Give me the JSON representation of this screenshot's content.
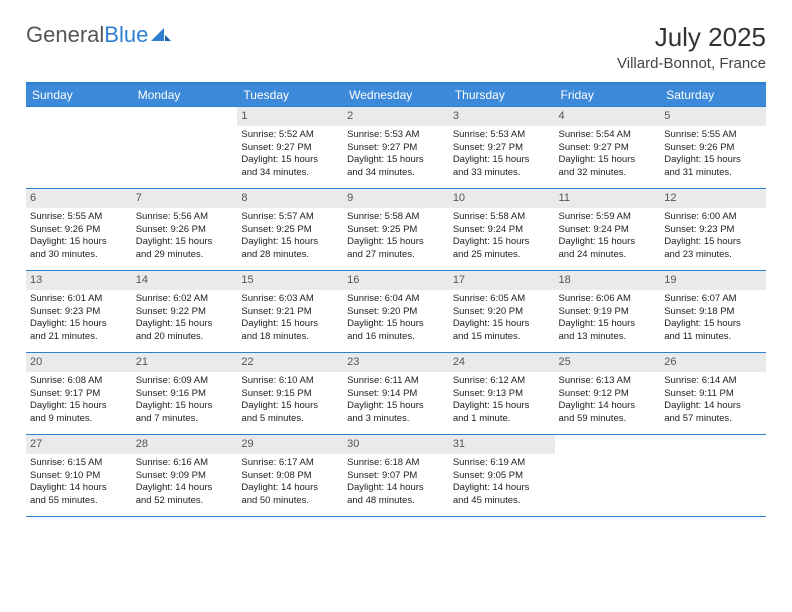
{
  "brand": {
    "part1": "General",
    "part2": "Blue"
  },
  "title": {
    "month": "July 2025",
    "location": "Villard-Bonnot, France"
  },
  "colors": {
    "header_bg": "#3b89d8",
    "rule": "#2f7fd1",
    "daynum_bg": "#e9eaec",
    "text": "#222222",
    "logo_gray": "#555555",
    "logo_blue": "#2f7fd1"
  },
  "dow": [
    "Sunday",
    "Monday",
    "Tuesday",
    "Wednesday",
    "Thursday",
    "Friday",
    "Saturday"
  ],
  "weeks": [
    [
      {
        "n": "",
        "lines": []
      },
      {
        "n": "",
        "lines": []
      },
      {
        "n": "1",
        "lines": [
          "Sunrise: 5:52 AM",
          "Sunset: 9:27 PM",
          "Daylight: 15 hours",
          "and 34 minutes."
        ]
      },
      {
        "n": "2",
        "lines": [
          "Sunrise: 5:53 AM",
          "Sunset: 9:27 PM",
          "Daylight: 15 hours",
          "and 34 minutes."
        ]
      },
      {
        "n": "3",
        "lines": [
          "Sunrise: 5:53 AM",
          "Sunset: 9:27 PM",
          "Daylight: 15 hours",
          "and 33 minutes."
        ]
      },
      {
        "n": "4",
        "lines": [
          "Sunrise: 5:54 AM",
          "Sunset: 9:27 PM",
          "Daylight: 15 hours",
          "and 32 minutes."
        ]
      },
      {
        "n": "5",
        "lines": [
          "Sunrise: 5:55 AM",
          "Sunset: 9:26 PM",
          "Daylight: 15 hours",
          "and 31 minutes."
        ]
      }
    ],
    [
      {
        "n": "6",
        "lines": [
          "Sunrise: 5:55 AM",
          "Sunset: 9:26 PM",
          "Daylight: 15 hours",
          "and 30 minutes."
        ]
      },
      {
        "n": "7",
        "lines": [
          "Sunrise: 5:56 AM",
          "Sunset: 9:26 PM",
          "Daylight: 15 hours",
          "and 29 minutes."
        ]
      },
      {
        "n": "8",
        "lines": [
          "Sunrise: 5:57 AM",
          "Sunset: 9:25 PM",
          "Daylight: 15 hours",
          "and 28 minutes."
        ]
      },
      {
        "n": "9",
        "lines": [
          "Sunrise: 5:58 AM",
          "Sunset: 9:25 PM",
          "Daylight: 15 hours",
          "and 27 minutes."
        ]
      },
      {
        "n": "10",
        "lines": [
          "Sunrise: 5:58 AM",
          "Sunset: 9:24 PM",
          "Daylight: 15 hours",
          "and 25 minutes."
        ]
      },
      {
        "n": "11",
        "lines": [
          "Sunrise: 5:59 AM",
          "Sunset: 9:24 PM",
          "Daylight: 15 hours",
          "and 24 minutes."
        ]
      },
      {
        "n": "12",
        "lines": [
          "Sunrise: 6:00 AM",
          "Sunset: 9:23 PM",
          "Daylight: 15 hours",
          "and 23 minutes."
        ]
      }
    ],
    [
      {
        "n": "13",
        "lines": [
          "Sunrise: 6:01 AM",
          "Sunset: 9:23 PM",
          "Daylight: 15 hours",
          "and 21 minutes."
        ]
      },
      {
        "n": "14",
        "lines": [
          "Sunrise: 6:02 AM",
          "Sunset: 9:22 PM",
          "Daylight: 15 hours",
          "and 20 minutes."
        ]
      },
      {
        "n": "15",
        "lines": [
          "Sunrise: 6:03 AM",
          "Sunset: 9:21 PM",
          "Daylight: 15 hours",
          "and 18 minutes."
        ]
      },
      {
        "n": "16",
        "lines": [
          "Sunrise: 6:04 AM",
          "Sunset: 9:20 PM",
          "Daylight: 15 hours",
          "and 16 minutes."
        ]
      },
      {
        "n": "17",
        "lines": [
          "Sunrise: 6:05 AM",
          "Sunset: 9:20 PM",
          "Daylight: 15 hours",
          "and 15 minutes."
        ]
      },
      {
        "n": "18",
        "lines": [
          "Sunrise: 6:06 AM",
          "Sunset: 9:19 PM",
          "Daylight: 15 hours",
          "and 13 minutes."
        ]
      },
      {
        "n": "19",
        "lines": [
          "Sunrise: 6:07 AM",
          "Sunset: 9:18 PM",
          "Daylight: 15 hours",
          "and 11 minutes."
        ]
      }
    ],
    [
      {
        "n": "20",
        "lines": [
          "Sunrise: 6:08 AM",
          "Sunset: 9:17 PM",
          "Daylight: 15 hours",
          "and 9 minutes."
        ]
      },
      {
        "n": "21",
        "lines": [
          "Sunrise: 6:09 AM",
          "Sunset: 9:16 PM",
          "Daylight: 15 hours",
          "and 7 minutes."
        ]
      },
      {
        "n": "22",
        "lines": [
          "Sunrise: 6:10 AM",
          "Sunset: 9:15 PM",
          "Daylight: 15 hours",
          "and 5 minutes."
        ]
      },
      {
        "n": "23",
        "lines": [
          "Sunrise: 6:11 AM",
          "Sunset: 9:14 PM",
          "Daylight: 15 hours",
          "and 3 minutes."
        ]
      },
      {
        "n": "24",
        "lines": [
          "Sunrise: 6:12 AM",
          "Sunset: 9:13 PM",
          "Daylight: 15 hours",
          "and 1 minute."
        ]
      },
      {
        "n": "25",
        "lines": [
          "Sunrise: 6:13 AM",
          "Sunset: 9:12 PM",
          "Daylight: 14 hours",
          "and 59 minutes."
        ]
      },
      {
        "n": "26",
        "lines": [
          "Sunrise: 6:14 AM",
          "Sunset: 9:11 PM",
          "Daylight: 14 hours",
          "and 57 minutes."
        ]
      }
    ],
    [
      {
        "n": "27",
        "lines": [
          "Sunrise: 6:15 AM",
          "Sunset: 9:10 PM",
          "Daylight: 14 hours",
          "and 55 minutes."
        ]
      },
      {
        "n": "28",
        "lines": [
          "Sunrise: 6:16 AM",
          "Sunset: 9:09 PM",
          "Daylight: 14 hours",
          "and 52 minutes."
        ]
      },
      {
        "n": "29",
        "lines": [
          "Sunrise: 6:17 AM",
          "Sunset: 9:08 PM",
          "Daylight: 14 hours",
          "and 50 minutes."
        ]
      },
      {
        "n": "30",
        "lines": [
          "Sunrise: 6:18 AM",
          "Sunset: 9:07 PM",
          "Daylight: 14 hours",
          "and 48 minutes."
        ]
      },
      {
        "n": "31",
        "lines": [
          "Sunrise: 6:19 AM",
          "Sunset: 9:05 PM",
          "Daylight: 14 hours",
          "and 45 minutes."
        ]
      },
      {
        "n": "",
        "lines": []
      },
      {
        "n": "",
        "lines": []
      }
    ]
  ]
}
